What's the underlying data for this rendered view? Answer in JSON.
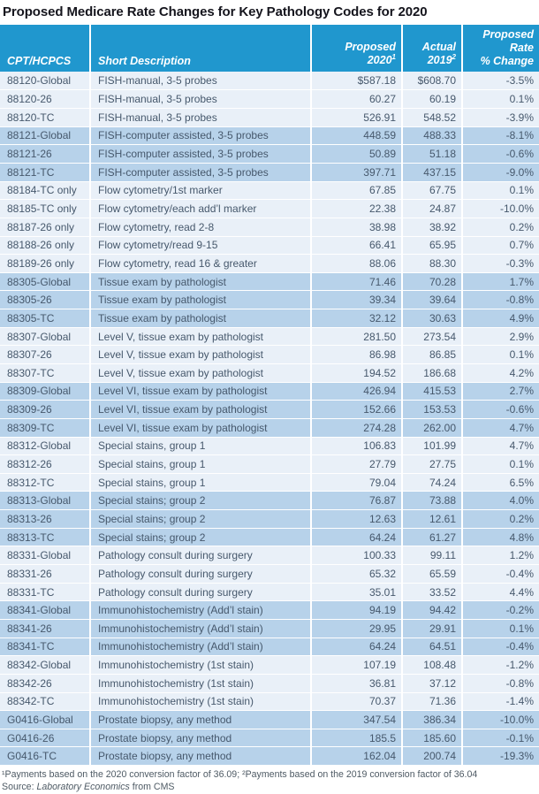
{
  "title": "Proposed Medicare Rate Changes for Key Pathology Codes for 2020",
  "colors": {
    "header_bg": "#2097CE",
    "band_dark": "#B7D2EA",
    "band_light": "#E9F0F8",
    "header_text": "#FFFFFF",
    "body_text": "#46586C",
    "title_text": "#15151D"
  },
  "table": {
    "columns": [
      {
        "label": "CPT/HCPCS"
      },
      {
        "label": "Short Description"
      },
      {
        "line1": "Proposed",
        "line2": "2020",
        "sup": "1"
      },
      {
        "line1": "Actual",
        "line2": "2019",
        "sup": "2"
      },
      {
        "line1": "Proposed Rate",
        "line2": "% Change"
      }
    ],
    "rows": [
      {
        "code": "88120-Global",
        "description": "FISH-manual, 3-5 probes",
        "proposed": "$587.18",
        "actual": "$608.70",
        "change": "-3.5%",
        "band": "light"
      },
      {
        "code": "88120-26",
        "description": "FISH-manual, 3-5 probes",
        "proposed": "60.27",
        "actual": "60.19",
        "change": "0.1%",
        "band": "light"
      },
      {
        "code": "88120-TC",
        "description": "FISH-manual, 3-5 probes",
        "proposed": "526.91",
        "actual": "548.52",
        "change": "-3.9%",
        "band": "light"
      },
      {
        "code": "88121-Global",
        "description": "FISH-computer assisted, 3-5 probes",
        "proposed": "448.59",
        "actual": "488.33",
        "change": "-8.1%",
        "band": "dark"
      },
      {
        "code": "88121-26",
        "description": "FISH-computer assisted, 3-5 probes",
        "proposed": "50.89",
        "actual": "51.18",
        "change": "-0.6%",
        "band": "dark"
      },
      {
        "code": "88121-TC",
        "description": "FISH-computer assisted, 3-5 probes",
        "proposed": "397.71",
        "actual": "437.15",
        "change": "-9.0%",
        "band": "dark"
      },
      {
        "code": "88184-TC only",
        "description": "Flow cytometry/1st marker",
        "proposed": "67.85",
        "actual": "67.75",
        "change": "0.1%",
        "band": "light"
      },
      {
        "code": "88185-TC only",
        "description": "Flow cytometry/each add’l marker",
        "proposed": "22.38",
        "actual": "24.87",
        "change": "-10.0%",
        "band": "light"
      },
      {
        "code": "88187-26 only",
        "description": "Flow cytometry, read 2-8",
        "proposed": "38.98",
        "actual": "38.92",
        "change": "0.2%",
        "band": "light"
      },
      {
        "code": "88188-26 only",
        "description": "Flow cytometry/read  9-15",
        "proposed": "66.41",
        "actual": "65.95",
        "change": "0.7%",
        "band": "light"
      },
      {
        "code": "88189-26 only",
        "description": "Flow cytometry, read 16 & greater",
        "proposed": "88.06",
        "actual": "88.30",
        "change": "-0.3%",
        "band": "light"
      },
      {
        "code": "88305-Global",
        "description": "Tissue exam by pathologist",
        "proposed": "71.46",
        "actual": "70.28",
        "change": "1.7%",
        "band": "dark"
      },
      {
        "code": "88305-26",
        "description": "Tissue exam by pathologist",
        "proposed": "39.34",
        "actual": "39.64",
        "change": "-0.8%",
        "band": "dark"
      },
      {
        "code": "88305-TC",
        "description": "Tissue exam by pathologist",
        "proposed": "32.12",
        "actual": "30.63",
        "change": "4.9%",
        "band": "dark"
      },
      {
        "code": "88307-Global",
        "description": "Level V, tissue exam by pathologist",
        "proposed": "281.50",
        "actual": "273.54",
        "change": "2.9%",
        "band": "light"
      },
      {
        "code": "88307-26",
        "description": "Level V, tissue exam by pathologist",
        "proposed": "86.98",
        "actual": "86.85",
        "change": "0.1%",
        "band": "light"
      },
      {
        "code": "88307-TC",
        "description": "Level V, tissue exam by pathologist",
        "proposed": "194.52",
        "actual": "186.68",
        "change": "4.2%",
        "band": "light"
      },
      {
        "code": "88309-Global",
        "description": "Level VI, tissue exam by pathologist",
        "proposed": "426.94",
        "actual": "415.53",
        "change": "2.7%",
        "band": "dark"
      },
      {
        "code": "88309-26",
        "description": "Level VI, tissue exam by pathologist",
        "proposed": "152.66",
        "actual": "153.53",
        "change": "-0.6%",
        "band": "dark"
      },
      {
        "code": "88309-TC",
        "description": "Level VI, tissue exam by pathologist",
        "proposed": "274.28",
        "actual": "262.00",
        "change": "4.7%",
        "band": "dark"
      },
      {
        "code": "88312-Global",
        "description": "Special stains, group 1",
        "proposed": "106.83",
        "actual": "101.99",
        "change": "4.7%",
        "band": "light"
      },
      {
        "code": "88312-26",
        "description": "Special stains, group 1",
        "proposed": "27.79",
        "actual": "27.75",
        "change": "0.1%",
        "band": "light"
      },
      {
        "code": "88312-TC",
        "description": "Special stains, group 1",
        "proposed": "79.04",
        "actual": "74.24",
        "change": "6.5%",
        "band": "light"
      },
      {
        "code": "88313-Global",
        "description": "Special stains; group 2",
        "proposed": "76.87",
        "actual": "73.88",
        "change": "4.0%",
        "band": "dark"
      },
      {
        "code": "88313-26",
        "description": "Special stains; group 2",
        "proposed": "12.63",
        "actual": "12.61",
        "change": "0.2%",
        "band": "dark"
      },
      {
        "code": "88313-TC",
        "description": "Special stains; group 2",
        "proposed": "64.24",
        "actual": "61.27",
        "change": "4.8%",
        "band": "dark"
      },
      {
        "code": "88331-Global",
        "description": "Pathology consult during surgery",
        "proposed": "100.33",
        "actual": "99.11",
        "change": "1.2%",
        "band": "light"
      },
      {
        "code": "88331-26",
        "description": "Pathology consult during surgery",
        "proposed": "65.32",
        "actual": "65.59",
        "change": "-0.4%",
        "band": "light"
      },
      {
        "code": "88331-TC",
        "description": "Pathology consult during surgery",
        "proposed": "35.01",
        "actual": "33.52",
        "change": "4.4%",
        "band": "light"
      },
      {
        "code": "88341-Global",
        "description": "Immunohistochemistry (Add’l stain)",
        "proposed": "94.19",
        "actual": "94.42",
        "change": "-0.2%",
        "band": "dark"
      },
      {
        "code": "88341-26",
        "description": "Immunohistochemistry (Add’l stain)",
        "proposed": "29.95",
        "actual": "29.91",
        "change": "0.1%",
        "band": "dark"
      },
      {
        "code": "88341-TC",
        "description": "Immunohistochemistry (Add’l stain)",
        "proposed": "64.24",
        "actual": "64.51",
        "change": "-0.4%",
        "band": "dark"
      },
      {
        "code": "88342-Global",
        "description": "Immunohistochemistry (1st stain)",
        "proposed": "107.19",
        "actual": "108.48",
        "change": "-1.2%",
        "band": "light"
      },
      {
        "code": "88342-26",
        "description": "Immunohistochemistry (1st stain)",
        "proposed": "36.81",
        "actual": "37.12",
        "change": "-0.8%",
        "band": "light"
      },
      {
        "code": "88342-TC",
        "description": "Immunohistochemistry (1st stain)",
        "proposed": "70.37",
        "actual": "71.36",
        "change": "-1.4%",
        "band": "light"
      },
      {
        "code": "G0416-Global",
        "description": "Prostate biopsy, any method",
        "proposed": "347.54",
        "actual": "386.34",
        "change": "-10.0%",
        "band": "dark"
      },
      {
        "code": "G0416-26",
        "description": "Prostate biopsy, any method",
        "proposed": "185.5",
        "actual": "185.60",
        "change": "-0.1%",
        "band": "dark"
      },
      {
        "code": "G0416-TC",
        "description": "Prostate biopsy, any method",
        "proposed": "162.04",
        "actual": "200.74",
        "change": "-19.3%",
        "band": "dark"
      }
    ]
  },
  "footnotes": {
    "line1": "¹Payments based on the 2020 conversion factor of 36.09; ²Payments based on the 2019 conversion factor of 36.04",
    "source_prefix": "Source: ",
    "source_italic": "Laboratory Economics",
    "source_suffix": " from CMS"
  }
}
